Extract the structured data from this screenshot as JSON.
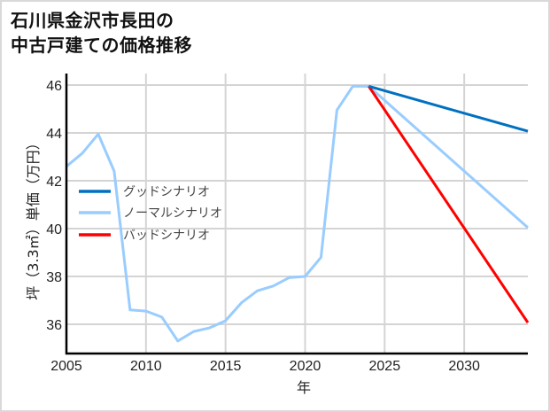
{
  "title_lines": [
    "石川県金沢市長田の",
    "中古戸建ての価格推移"
  ],
  "chart_data": {
    "type": "line",
    "title": "石川県金沢市長田の中古戸建ての価格推移",
    "xlabel": "年",
    "ylabel": "坪（3.3㎡）単価（万円）",
    "xlim": [
      2005,
      2034
    ],
    "ylim": [
      34.8,
      46.5
    ],
    "x_ticks": [
      2005,
      2010,
      2015,
      2020,
      2025,
      2030
    ],
    "y_ticks": [
      36,
      38,
      40,
      42,
      44,
      46
    ],
    "grid": true,
    "legend_position": "left-middle inside",
    "history": {
      "x": [
        2005,
        2006,
        2007,
        2008,
        2009,
        2010,
        2011,
        2012,
        2013,
        2014,
        2015,
        2016,
        2017,
        2018,
        2019,
        2020,
        2021,
        2022,
        2023,
        2024
      ],
      "values": [
        42.6,
        43.15,
        43.95,
        42.4,
        36.6,
        36.55,
        36.3,
        35.3,
        35.7,
        35.85,
        36.15,
        36.9,
        37.4,
        37.6,
        37.95,
        38.0,
        38.8,
        44.95,
        45.95,
        45.95
      ]
    },
    "series": [
      {
        "name": "グッドシナリオ",
        "color": "#0070C0",
        "x": [
          2024,
          2034
        ],
        "values": [
          45.95,
          44.07
        ]
      },
      {
        "name": "ノーマルシナリオ",
        "color": "#99CCFF",
        "x": [
          2024,
          2034
        ],
        "values": [
          45.95,
          40.04
        ]
      },
      {
        "name": "バッドシナリオ",
        "color": "#FF0000",
        "x": [
          2024,
          2034
        ],
        "values": [
          45.95,
          36.07
        ]
      }
    ],
    "history_color": "#99CCFF"
  }
}
